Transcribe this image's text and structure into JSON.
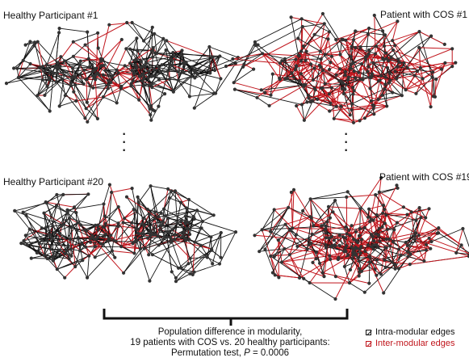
{
  "panels": [
    {
      "label": "Healthy Participant #1",
      "seed": 11,
      "style": "bimodal"
    },
    {
      "label": "Patient with COS #1",
      "seed": 23,
      "style": "dense"
    },
    {
      "label": "Healthy Participant #20",
      "seed": 37,
      "style": "bimodal"
    },
    {
      "label": "Patient with COS #19",
      "seed": 53,
      "style": "dense"
    }
  ],
  "caption": {
    "line1": "Population difference in modularity,",
    "line2": "19 patients with COS vs. 20 healthy participants:",
    "line3_prefix": "Permutation test, ",
    "line3_p": "P",
    "line3_suffix": " = 0.0006"
  },
  "legend": {
    "intra_label": "Intra-modular edges",
    "inter_label": "Inter-modular edges",
    "intra_color": "#111111",
    "inter_color": "#c0141b"
  },
  "colors": {
    "node": "#333333",
    "intra_edge": "#111111",
    "inter_edge": "#c0141b"
  }
}
